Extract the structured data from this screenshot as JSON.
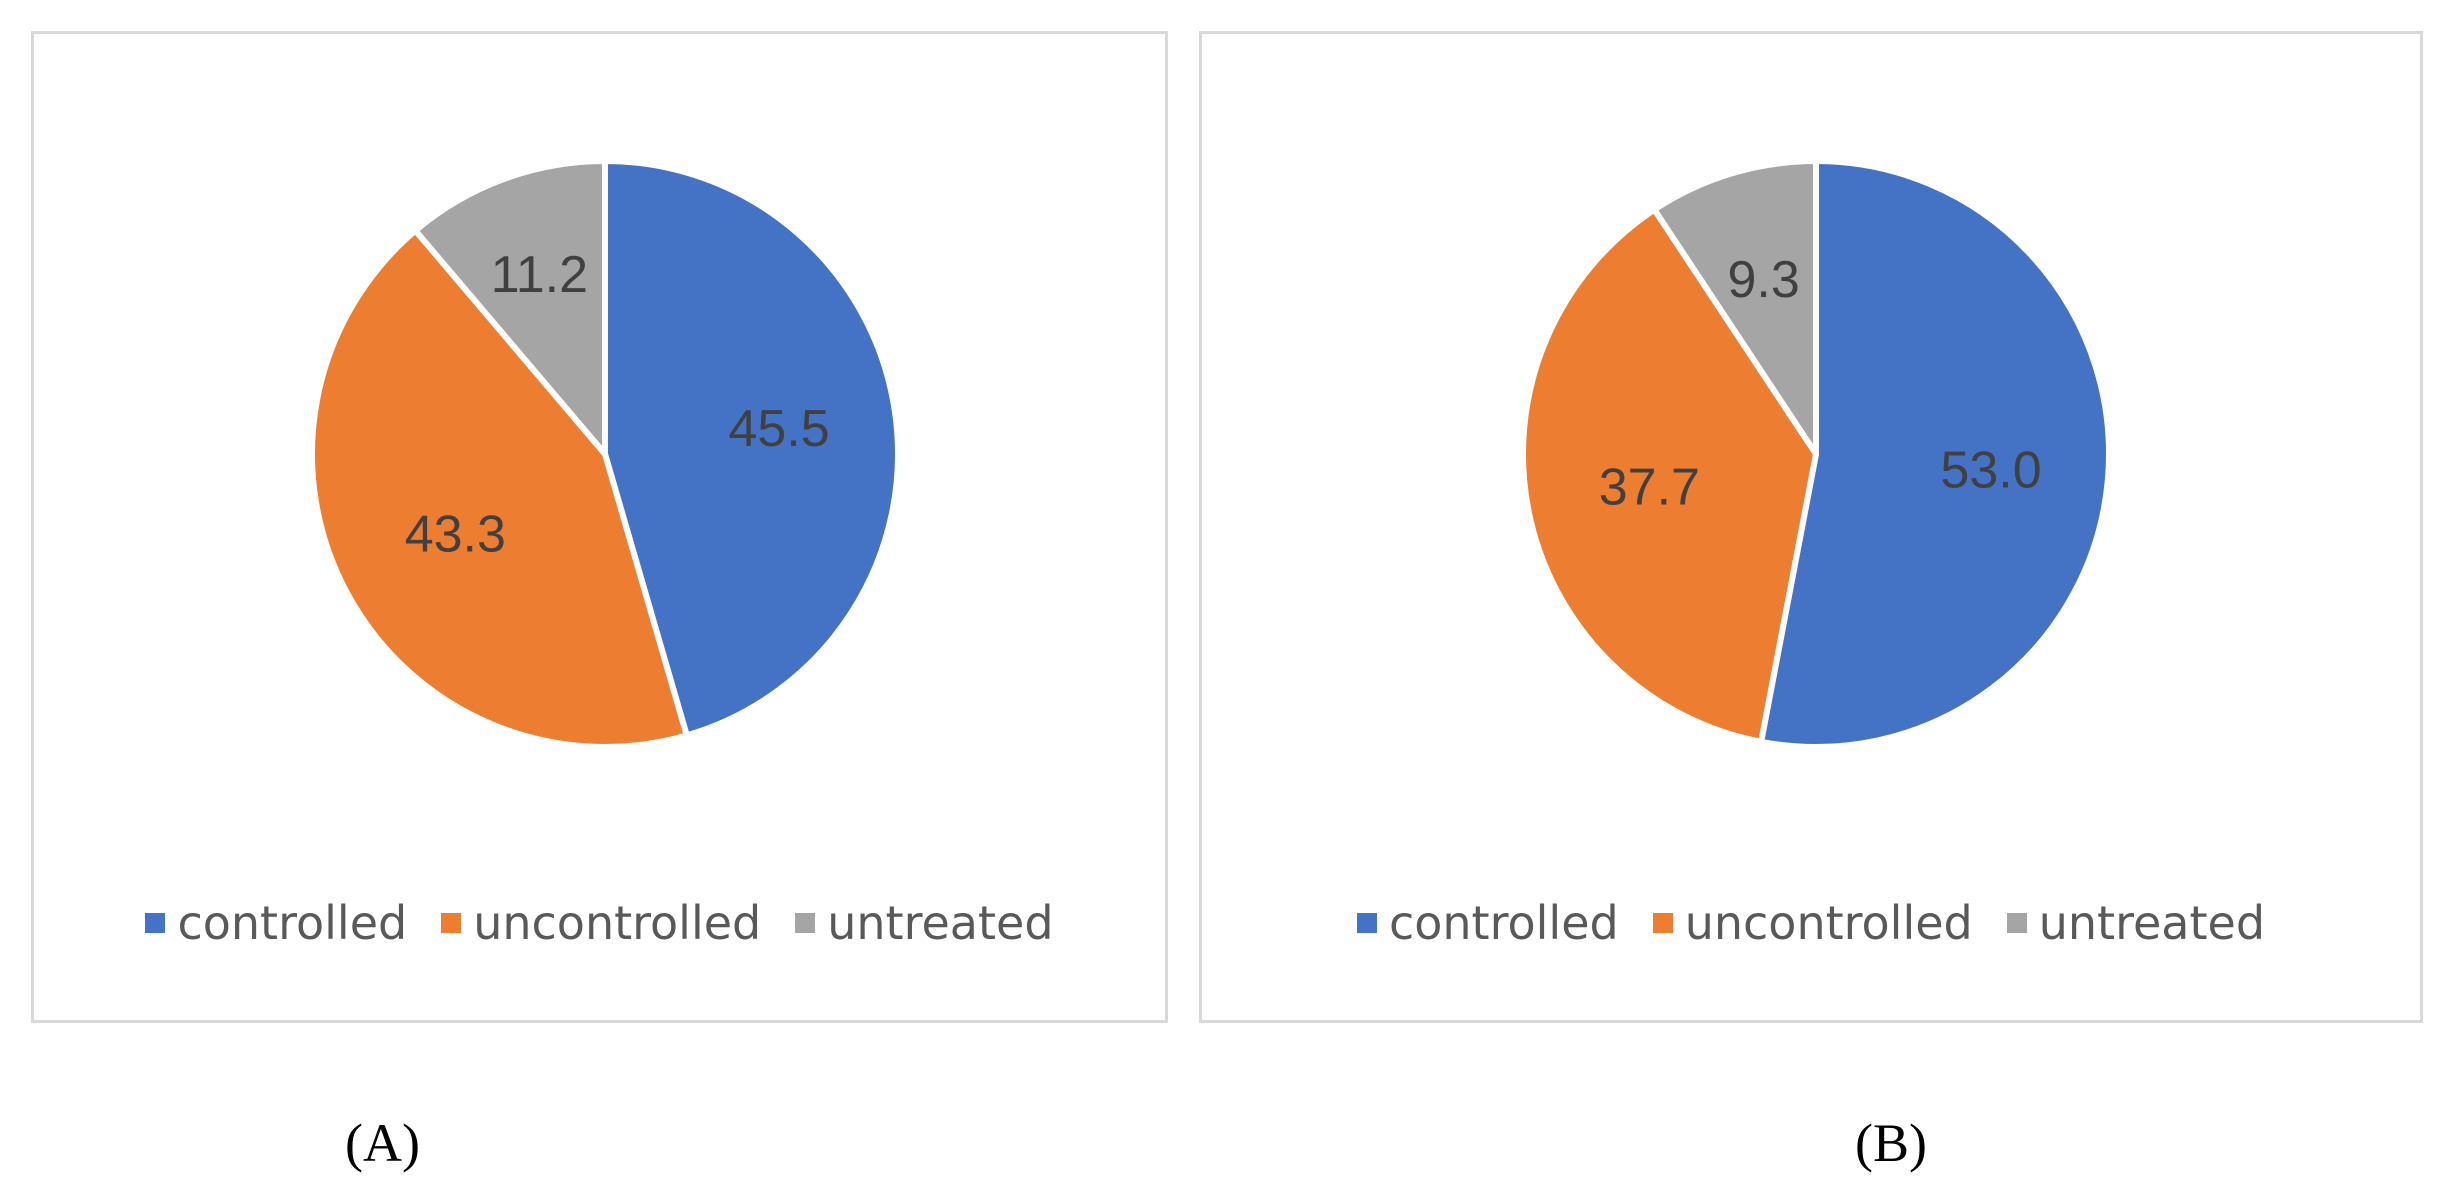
{
  "chart_data": [
    {
      "type": "pie",
      "panel_label": "(A)",
      "categories": [
        "controlled",
        "uncontrolled",
        "untreated"
      ],
      "values": [
        45.5,
        43.3,
        11.2
      ],
      "value_labels": [
        "45.5",
        "43.3",
        "11.2"
      ],
      "colors": [
        "#4472c4",
        "#ed7d31",
        "#a5a5a5"
      ],
      "start_angle": "12 o'clock",
      "direction": "clockwise",
      "legend": "bottom"
    },
    {
      "type": "pie",
      "panel_label": "(B)",
      "categories": [
        "controlled",
        "uncontrolled",
        "untreated"
      ],
      "values": [
        53.0,
        37.7,
        9.3
      ],
      "value_labels": [
        "53.0",
        "37.7",
        "9.3"
      ],
      "colors": [
        "#4472c4",
        "#ed7d31",
        "#a5a5a5"
      ],
      "start_angle": "12 o'clock",
      "direction": "clockwise",
      "legend": "bottom"
    }
  ]
}
